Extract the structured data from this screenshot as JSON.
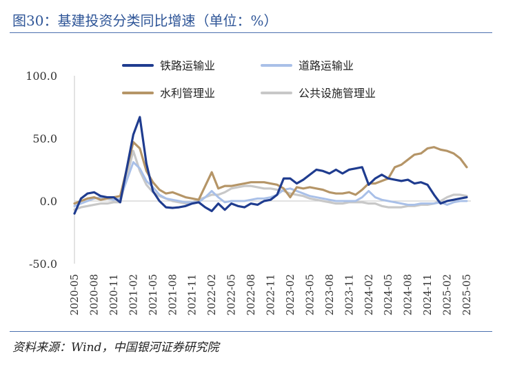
{
  "figure": {
    "title": "图30：基建投资分类同比增速（单位：%）",
    "source": "资料来源：Wind，中国银河证券研究院"
  },
  "chart_data": {
    "type": "line",
    "x": [
      "2020-05",
      "2020-06",
      "2020-07",
      "2020-08",
      "2020-09",
      "2020-10",
      "2020-11",
      "2020-12",
      "2021-01",
      "2021-02",
      "2021-03",
      "2021-04",
      "2021-05",
      "2021-06",
      "2021-07",
      "2021-08",
      "2021-09",
      "2021-10",
      "2021-11",
      "2021-12",
      "2022-01",
      "2022-02",
      "2022-03",
      "2022-04",
      "2022-05",
      "2022-06",
      "2022-07",
      "2022-08",
      "2022-09",
      "2022-10",
      "2022-11",
      "2022-12",
      "2023-01",
      "2023-02",
      "2023-03",
      "2023-04",
      "2023-05",
      "2023-06",
      "2023-07",
      "2023-08",
      "2023-09",
      "2023-10",
      "2023-11",
      "2023-12",
      "2024-01",
      "2024-02",
      "2024-03",
      "2024-04",
      "2024-05",
      "2024-06",
      "2024-07",
      "2024-08",
      "2024-09",
      "2024-10",
      "2024-11",
      "2024-12",
      "2025-01",
      "2025-02",
      "2025-03",
      "2025-04",
      "2025-05"
    ],
    "xtick_labels": [
      "2020-05",
      "2020-08",
      "2020-11",
      "2021-02",
      "2021-05",
      "2021-08",
      "2021-11",
      "2022-02",
      "2022-05",
      "2022-08",
      "2022-11",
      "2023-02",
      "2023-05",
      "2023-08",
      "2023-11",
      "2024-02",
      "2024-05",
      "2024-08",
      "2024-11",
      "2025-02",
      "2025-05"
    ],
    "yticks": [
      "100.0",
      "50.0",
      "0.0",
      "-50.0"
    ],
    "ylim": [
      -50,
      100
    ],
    "legend_position": "top",
    "series": [
      {
        "name": "铁路运输业",
        "color": "#1f3c8f",
        "width": 3.2,
        "values": [
          -10,
          2,
          6,
          7,
          4,
          3,
          3,
          -1,
          null,
          53,
          67,
          30,
          8,
          0,
          -5,
          -5.5,
          -5,
          -4,
          -2,
          -1,
          -5,
          -8,
          -2,
          -7,
          -2,
          -4,
          -5,
          -2,
          -3,
          0,
          1,
          5,
          18,
          18,
          14,
          17,
          21,
          25,
          24,
          22,
          25,
          22,
          25,
          26,
          27,
          13,
          18,
          21,
          18,
          17,
          16,
          17,
          14,
          15,
          13,
          5,
          -2,
          0,
          1,
          2,
          3
        ]
      },
      {
        "name": "道路运输业",
        "color": "#a9c0e8",
        "width": 3,
        "values": [
          -4,
          -2,
          0,
          2,
          3,
          2,
          1,
          2,
          null,
          31,
          26,
          16,
          11,
          5,
          2,
          1,
          0,
          -1,
          -1,
          -1,
          3,
          8,
          3,
          -1,
          0,
          0,
          0,
          1,
          2,
          2,
          3,
          5,
          9,
          10,
          8,
          6,
          4,
          3,
          2,
          1,
          0,
          0,
          0,
          0,
          3,
          8,
          3,
          1,
          0,
          -1,
          -2,
          -3,
          -3,
          -2,
          -2,
          -2,
          -1,
          -3,
          -1,
          0,
          0
        ]
      },
      {
        "name": "水利管理业",
        "color": "#b59567",
        "width": 3.2,
        "values": [
          -2,
          0,
          2,
          3,
          1,
          2,
          3,
          4,
          null,
          47,
          42,
          24,
          15,
          9,
          6,
          7,
          5,
          3,
          2,
          1,
          12,
          23,
          10,
          12,
          12,
          13,
          14,
          15,
          15,
          15,
          14,
          13,
          10,
          3,
          11,
          10,
          11,
          10,
          9,
          7,
          6,
          6,
          7,
          5,
          9,
          14,
          14,
          16,
          18,
          27,
          29,
          33,
          37,
          38,
          42,
          43,
          41,
          40,
          38,
          34,
          27
        ]
      },
      {
        "name": "公共设施管理业",
        "color": "#c8c8c8",
        "width": 3.2,
        "values": [
          -7,
          -5,
          -4,
          -3,
          -2,
          -2,
          -1,
          -1,
          null,
          40,
          24,
          13,
          7,
          4,
          2,
          0,
          -1,
          -2,
          -1,
          1,
          3,
          5,
          5,
          7,
          10,
          11,
          12,
          12,
          11,
          10,
          10,
          9,
          8,
          6,
          5,
          4,
          2,
          1,
          0,
          -1,
          -2,
          -2,
          -1,
          -1,
          -1,
          -2,
          -2,
          -4,
          -5,
          -5,
          -5,
          -4,
          -4,
          -3,
          -3,
          -2,
          0,
          3,
          5,
          5,
          4
        ]
      }
    ]
  }
}
